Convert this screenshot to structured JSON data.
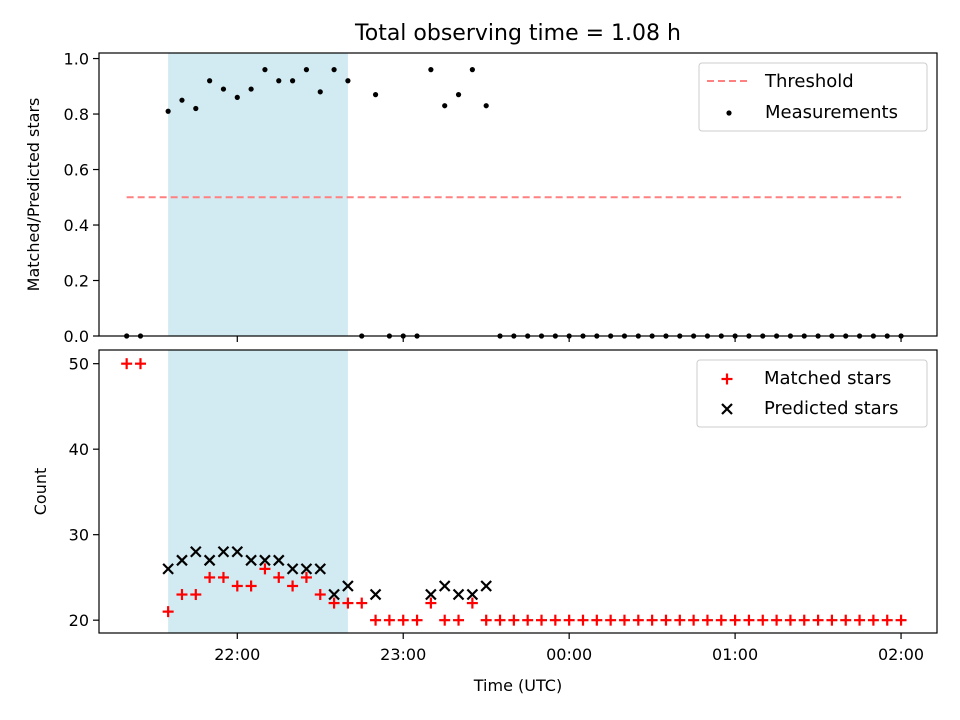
{
  "chart_data": [
    {
      "panel": "top",
      "type": "scatter",
      "title": "Total observing time = 1.08 h",
      "ylabel": "Matched/Predicted stars",
      "xlabel": "",
      "xlim": [
        "21:10",
        "02:13"
      ],
      "ylim": [
        0,
        1.02
      ],
      "yticks": [
        0.0,
        0.2,
        0.4,
        0.6,
        0.8,
        1.0
      ],
      "ytick_labels": [
        "0.0",
        "0.2",
        "0.4",
        "0.6",
        "0.8",
        "1.0"
      ],
      "xticks": [
        "22:00",
        "23:00",
        "00:00",
        "01:00",
        "02:00"
      ],
      "show_xtick_labels": false,
      "grid": false,
      "legend": {
        "placement": "top-right",
        "entries": [
          {
            "label": "Threshold",
            "marker": "dashed-line",
            "color": "#ff8080"
          },
          {
            "label": "Measurements",
            "marker": "dot",
            "color": "#000000"
          }
        ]
      },
      "shaded_span": {
        "from": "21:35",
        "to": "22:40",
        "color": "#add8e6"
      },
      "threshold": {
        "name": "Threshold",
        "value": 0.5,
        "from": "21:20",
        "to": "02:00",
        "color": "#ff8080"
      },
      "series": [
        {
          "name": "Measurements",
          "color": "#000000",
          "x": [
            "21:20",
            "21:25",
            "21:35",
            "21:40",
            "21:45",
            "21:50",
            "21:55",
            "22:00",
            "22:05",
            "22:10",
            "22:15",
            "22:20",
            "22:25",
            "22:30",
            "22:35",
            "22:40",
            "22:45",
            "22:50",
            "22:55",
            "23:00",
            "23:05",
            "23:10",
            "23:15",
            "23:20",
            "23:25",
            "23:30",
            "23:35",
            "23:40",
            "23:45",
            "23:50",
            "23:55",
            "00:00",
            "00:05",
            "00:10",
            "00:15",
            "00:20",
            "00:25",
            "00:30",
            "00:35",
            "00:40",
            "00:45",
            "00:50",
            "00:55",
            "01:00",
            "01:05",
            "01:10",
            "01:15",
            "01:20",
            "01:25",
            "01:30",
            "01:35",
            "01:40",
            "01:45",
            "01:50",
            "01:55",
            "02:00"
          ],
          "y": [
            0,
            0,
            0.81,
            0.85,
            0.82,
            0.92,
            0.89,
            0.86,
            0.89,
            0.96,
            0.92,
            0.92,
            0.96,
            0.88,
            0.96,
            0.92,
            0,
            0.87,
            0,
            0,
            0,
            0.96,
            0.83,
            0.87,
            0.96,
            0.83,
            0,
            0,
            0,
            0,
            0,
            0,
            0,
            0,
            0,
            0,
            0,
            0,
            0,
            0,
            0,
            0,
            0,
            0,
            0,
            0,
            0,
            0,
            0,
            0,
            0,
            0,
            0,
            0,
            0,
            0
          ]
        }
      ]
    },
    {
      "panel": "bottom",
      "type": "scatter",
      "title": "",
      "ylabel": "Count",
      "xlabel": "Time (UTC)",
      "xlim": [
        "21:10",
        "02:13"
      ],
      "ylim": [
        18.5,
        51.6
      ],
      "yticks": [
        20,
        30,
        40,
        50
      ],
      "ytick_labels": [
        "20",
        "30",
        "40",
        "50"
      ],
      "xticks": [
        "22:00",
        "23:00",
        "00:00",
        "01:00",
        "02:00"
      ],
      "xtick_labels": [
        "22:00",
        "23:00",
        "00:00",
        "01:00",
        "02:00"
      ],
      "grid": false,
      "legend": {
        "placement": "top-right",
        "entries": [
          {
            "label": "Matched stars",
            "marker": "plus",
            "color": "#ff0000"
          },
          {
            "label": "Predicted stars",
            "marker": "x",
            "color": "#000000"
          }
        ]
      },
      "shaded_span": {
        "from": "21:35",
        "to": "22:40",
        "color": "#add8e6"
      },
      "series": [
        {
          "name": "Matched stars",
          "marker": "plus",
          "color": "#ff0000",
          "x": [
            "21:20",
            "21:25",
            "21:35",
            "21:40",
            "21:45",
            "21:50",
            "21:55",
            "22:00",
            "22:05",
            "22:10",
            "22:15",
            "22:20",
            "22:25",
            "22:30",
            "22:35",
            "22:40",
            "22:45",
            "22:50",
            "22:55",
            "23:00",
            "23:05",
            "23:10",
            "23:15",
            "23:20",
            "23:25",
            "23:30",
            "23:35",
            "23:40",
            "23:45",
            "23:50",
            "23:55",
            "00:00",
            "00:05",
            "00:10",
            "00:15",
            "00:20",
            "00:25",
            "00:30",
            "00:35",
            "00:40",
            "00:45",
            "00:50",
            "00:55",
            "01:00",
            "01:05",
            "01:10",
            "01:15",
            "01:20",
            "01:25",
            "01:30",
            "01:35",
            "01:40",
            "01:45",
            "01:50",
            "01:55",
            "02:00"
          ],
          "y": [
            50,
            50,
            21,
            23,
            23,
            25,
            25,
            24,
            24,
            26,
            25,
            24,
            25,
            23,
            22,
            22,
            22,
            20,
            20,
            20,
            20,
            22,
            20,
            20,
            22,
            20,
            20,
            20,
            20,
            20,
            20,
            20,
            20,
            20,
            20,
            20,
            20,
            20,
            20,
            20,
            20,
            20,
            20,
            20,
            20,
            20,
            20,
            20,
            20,
            20,
            20,
            20,
            20,
            20,
            20,
            20
          ]
        },
        {
          "name": "Predicted stars",
          "marker": "x",
          "color": "#000000",
          "x": [
            "21:35",
            "21:40",
            "21:45",
            "21:50",
            "21:55",
            "22:00",
            "22:05",
            "22:10",
            "22:15",
            "22:20",
            "22:25",
            "22:30",
            "22:35",
            "22:40",
            "22:50",
            "23:10",
            "23:15",
            "23:20",
            "23:25",
            "23:30"
          ],
          "y": [
            26,
            27,
            28,
            27,
            28,
            28,
            27,
            27,
            27,
            26,
            26,
            26,
            23,
            24,
            23,
            23,
            24,
            23,
            23,
            24
          ]
        }
      ]
    }
  ]
}
